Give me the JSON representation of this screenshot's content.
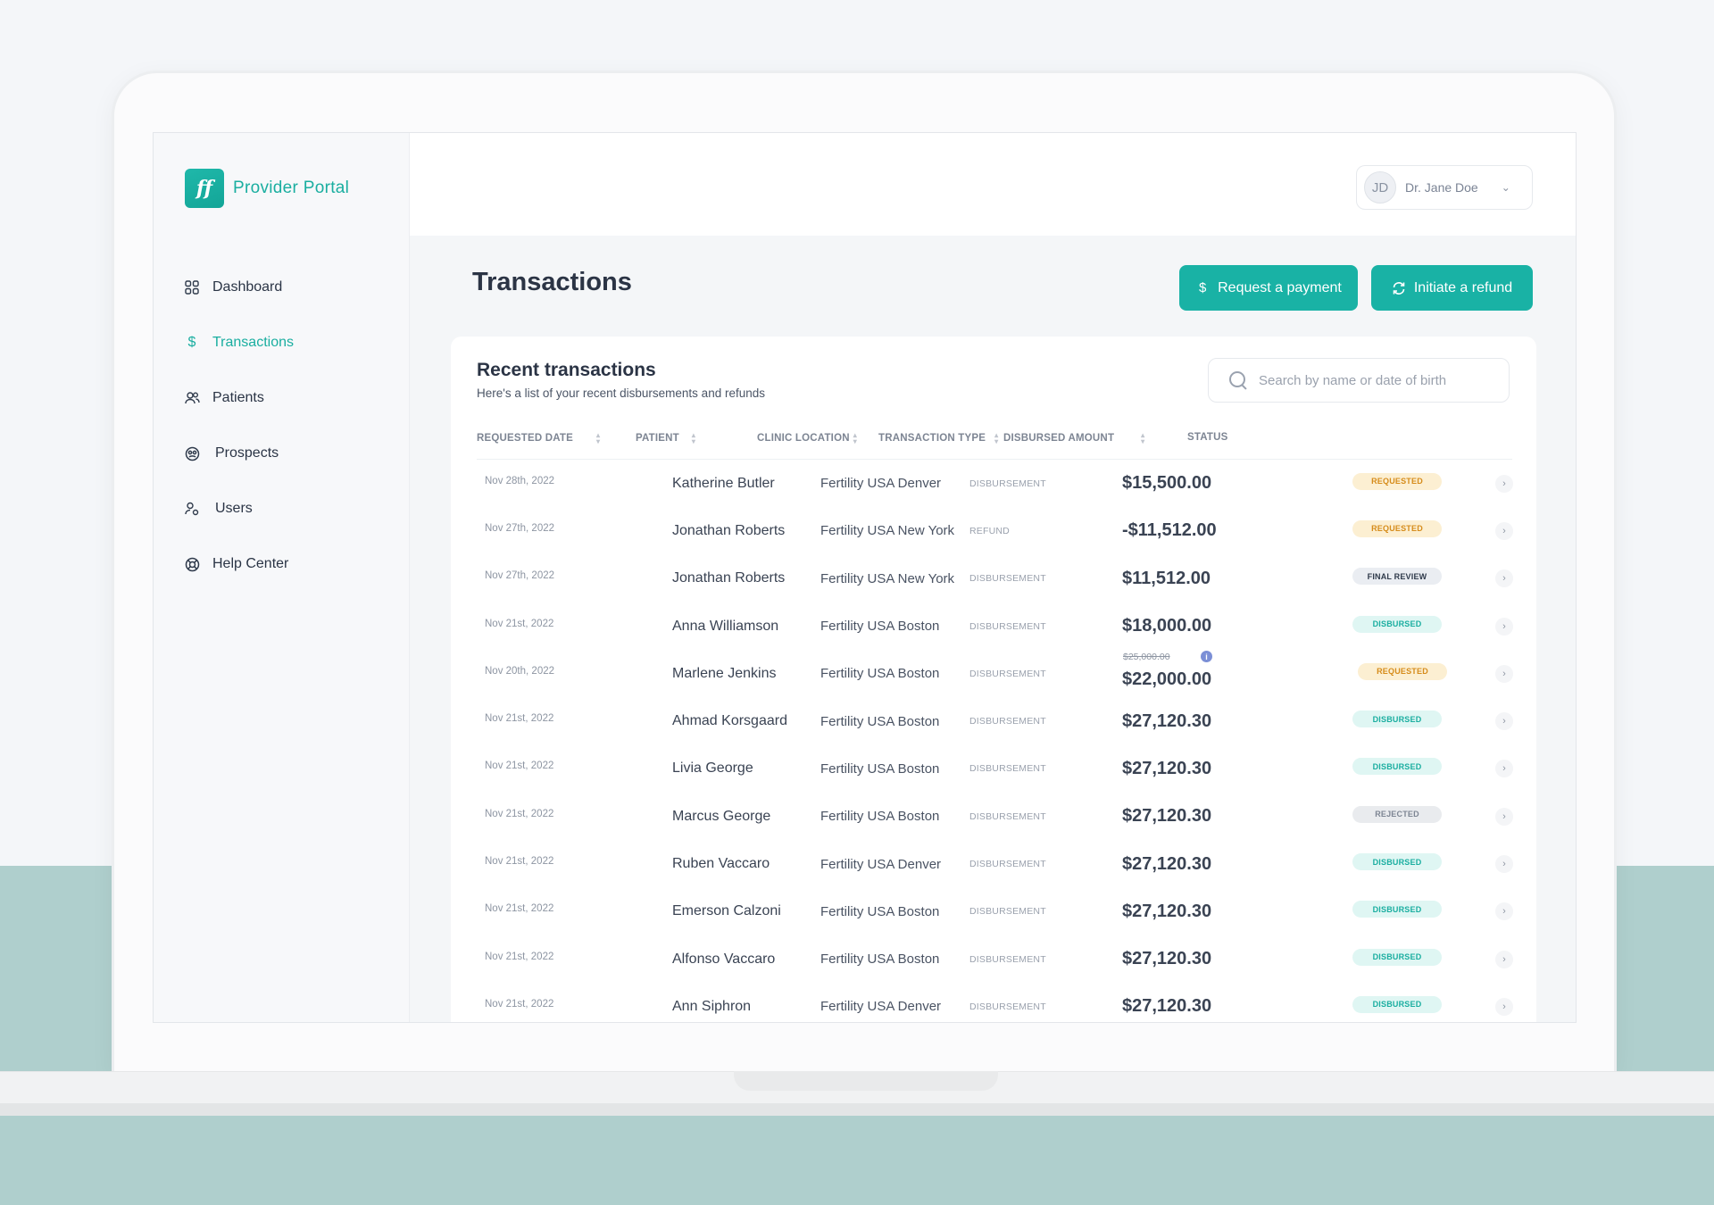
{
  "app": {
    "brand_logo_text": "ff",
    "brand_name": "Provider Portal"
  },
  "sidebar": {
    "items": [
      {
        "label": "Dashboard",
        "icon": "grid-icon"
      },
      {
        "label": "Transactions",
        "icon": "dollar-icon",
        "active": true
      },
      {
        "label": "Patients",
        "icon": "people-icon"
      },
      {
        "label": "Prospects",
        "icon": "prospects-icon"
      },
      {
        "label": "Users",
        "icon": "user-gear-icon"
      },
      {
        "label": "Help Center",
        "icon": "lifebuoy-icon"
      }
    ]
  },
  "header": {
    "avatar_initials": "JD",
    "user_name": "Dr. Jane Doe"
  },
  "page": {
    "title": "Transactions",
    "request_payment_label": "Request a payment",
    "initiate_refund_label": "Initiate a refund"
  },
  "card": {
    "title": "Recent transactions",
    "subtitle": "Here's a list of your recent disbursements and refunds",
    "search_placeholder": "Search by name or date of birth"
  },
  "table": {
    "columns": [
      "REQUESTED DATE",
      "PATIENT",
      "CLINIC LOCATION",
      "TRANSACTION TYPE",
      "DISBURSED AMOUNT",
      "STATUS"
    ],
    "rows": [
      {
        "date": "Nov 28th, 2022",
        "patient": "Katherine Butler",
        "clinic": "Fertility USA Denver",
        "type": "DISBURSEMENT",
        "amount": "$15,500.00",
        "status": "REQUESTED"
      },
      {
        "date": "Nov 27th, 2022",
        "patient": "Jonathan Roberts",
        "clinic": "Fertility USA New York",
        "type": "REFUND",
        "amount": "-$11,512.00",
        "status": "REQUESTED"
      },
      {
        "date": "Nov 27th, 2022",
        "patient": "Jonathan Roberts",
        "clinic": "Fertility USA New York",
        "type": "DISBURSEMENT",
        "amount": "$11,512.00",
        "status": "FINAL REVIEW"
      },
      {
        "date": "Nov 21st, 2022",
        "patient": "Anna Williamson",
        "clinic": "Fertility USA Boston",
        "type": "DISBURSEMENT",
        "amount": "$18,000.00",
        "status": "DISBURSED"
      },
      {
        "date": "Nov 20th, 2022",
        "patient": "Marlene Jenkins",
        "clinic": "Fertility USA Boston",
        "type": "DISBURSEMENT",
        "amount": "$22,000.00",
        "original_amount": "$25,000.00",
        "status": "REQUESTED"
      },
      {
        "date": "Nov 21st, 2022",
        "patient": "Ahmad Korsgaard",
        "clinic": "Fertility USA Boston",
        "type": "DISBURSEMENT",
        "amount": "$27,120.30",
        "status": "DISBURSED"
      },
      {
        "date": "Nov 21st, 2022",
        "patient": "Livia George",
        "clinic": "Fertility USA Boston",
        "type": "DISBURSEMENT",
        "amount": "$27,120.30",
        "status": "DISBURSED"
      },
      {
        "date": "Nov 21st, 2022",
        "patient": "Marcus George",
        "clinic": "Fertility USA Boston",
        "type": "DISBURSEMENT",
        "amount": "$27,120.30",
        "status": "REJECTED"
      },
      {
        "date": "Nov 21st, 2022",
        "patient": "Ruben Vaccaro",
        "clinic": "Fertility USA Denver",
        "type": "DISBURSEMENT",
        "amount": "$27,120.30",
        "status": "DISBURSED"
      },
      {
        "date": "Nov 21st, 2022",
        "patient": "Emerson Calzoni",
        "clinic": "Fertility USA Boston",
        "type": "DISBURSEMENT",
        "amount": "$27,120.30",
        "status": "DISBURSED"
      },
      {
        "date": "Nov 21st, 2022",
        "patient": "Alfonso Vaccaro",
        "clinic": "Fertility USA Boston",
        "type": "DISBURSEMENT",
        "amount": "$27,120.30",
        "status": "DISBURSED"
      },
      {
        "date": "Nov 21st, 2022",
        "patient": "Ann Siphron",
        "clinic": "Fertility USA Denver",
        "type": "DISBURSEMENT",
        "amount": "$27,120.30",
        "status": "DISBURSED"
      }
    ]
  },
  "colors": {
    "accent": "#19b2a5",
    "requested": "#d68c1b",
    "disbursed": "#1aaea0",
    "background_band": "#afcfcd"
  }
}
